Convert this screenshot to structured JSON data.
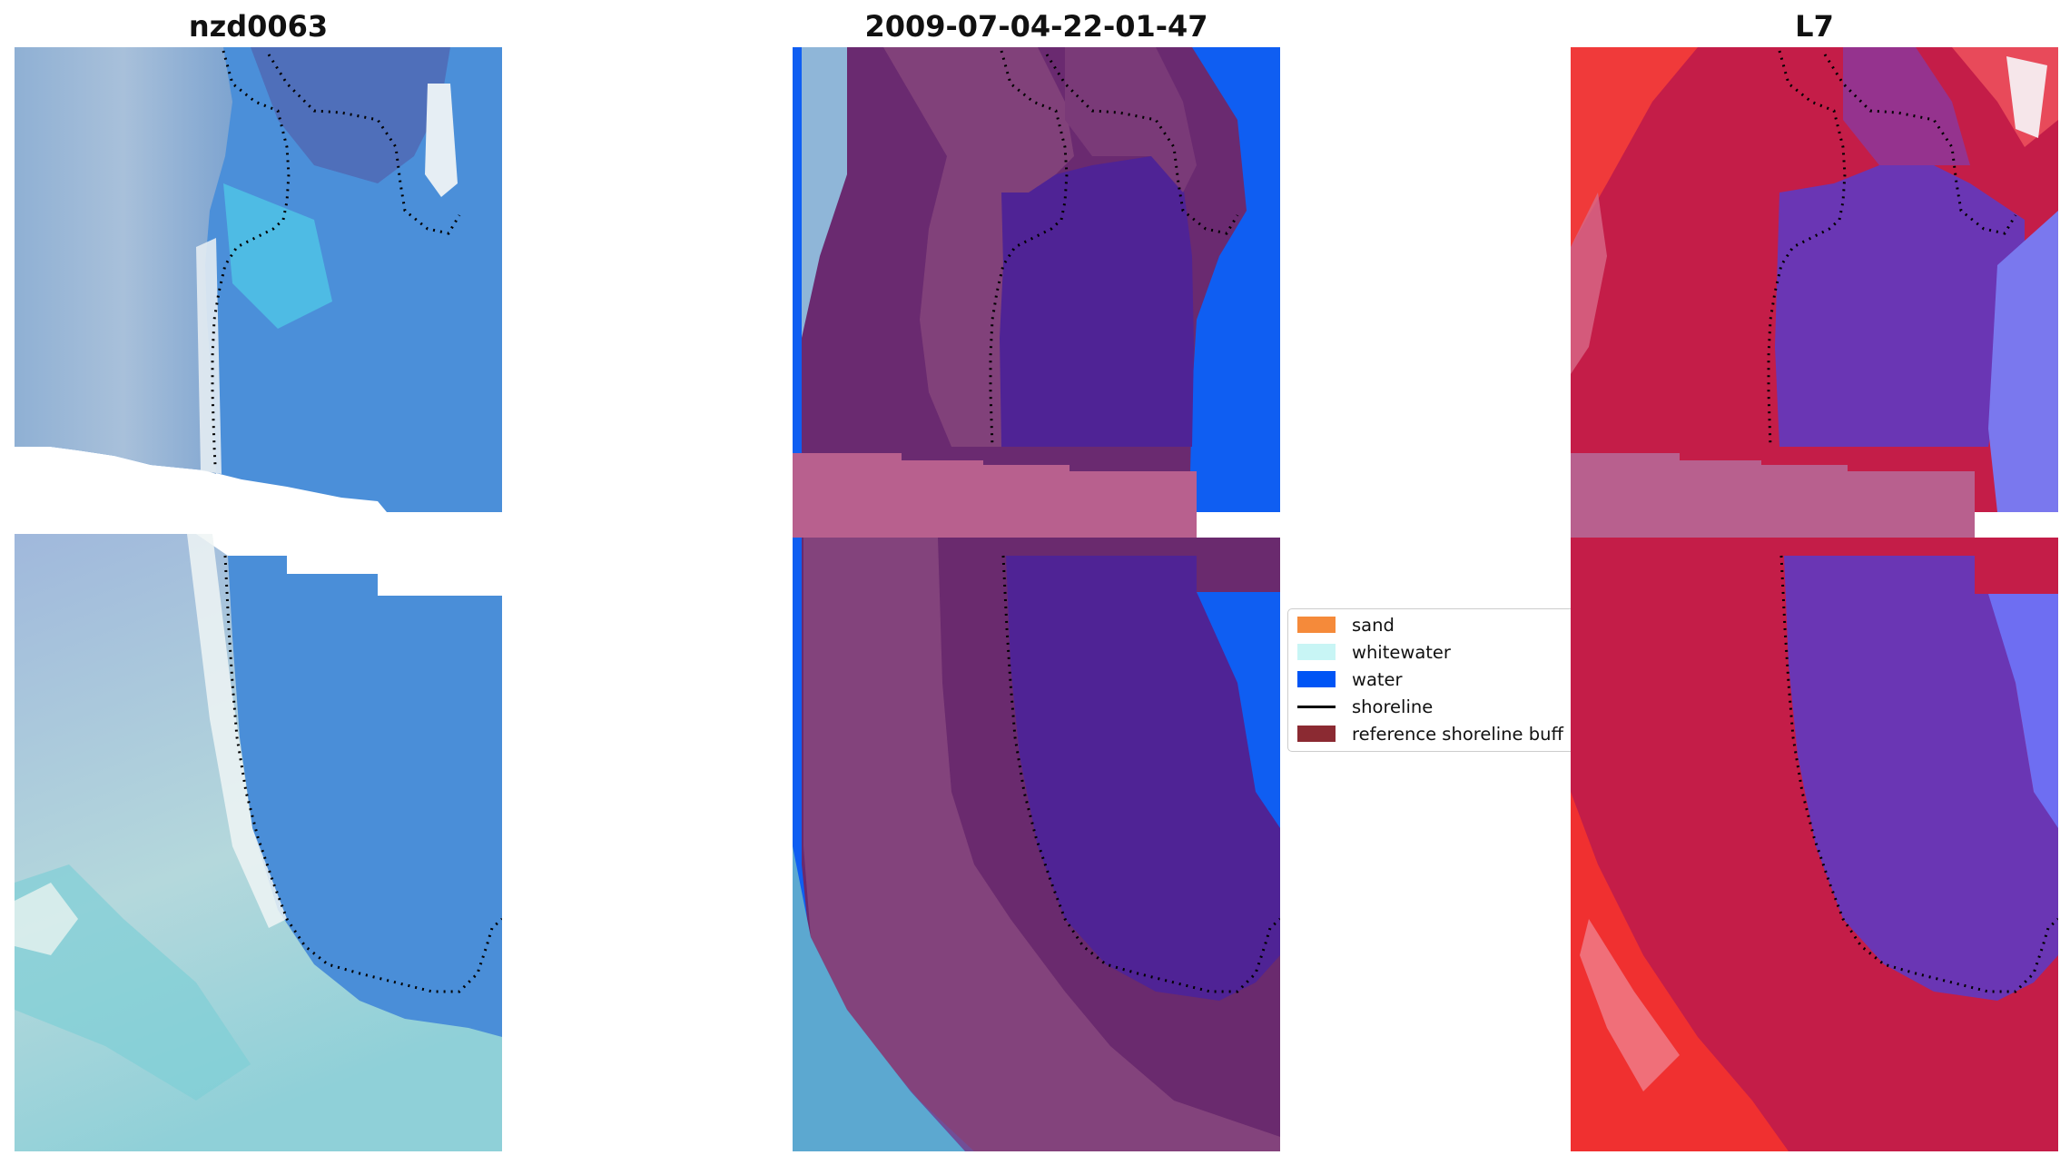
{
  "titles": {
    "left": "nzd0063",
    "center": "2009-07-04-22-01-47",
    "right": "L7"
  },
  "legend": {
    "items": [
      {
        "label": "sand",
        "color": "#f58a3a",
        "kind": "patch"
      },
      {
        "label": "whitewater",
        "color": "#c8f5f5",
        "kind": "patch"
      },
      {
        "label": "water",
        "color": "#0055f5",
        "kind": "patch"
      },
      {
        "label": "shoreline",
        "color": "#000000",
        "kind": "line"
      },
      {
        "label": "reference shoreline buff",
        "color": "#8b2a32",
        "kind": "patch"
      }
    ]
  },
  "colors": {
    "rgb_water": "#4a90d8",
    "rgb_land": "#8fb6d8",
    "class_water": "#0055f5",
    "class_ref_buffer": "#6a2a6a",
    "class_water_overlay": "#4f2395",
    "class_gap_band": "#b8608e",
    "index_land": "#c41d48",
    "index_water": "#6a36b4",
    "index_sea": "#6e6ef2",
    "index_outer": "#f03030"
  }
}
